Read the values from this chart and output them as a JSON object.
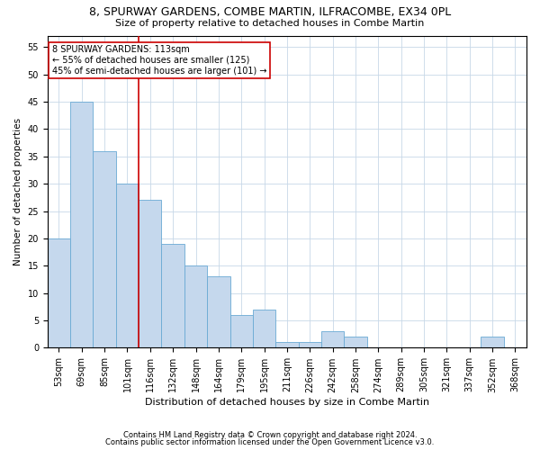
{
  "title1": "8, SPURWAY GARDENS, COMBE MARTIN, ILFRACOMBE, EX34 0PL",
  "title2": "Size of property relative to detached houses in Combe Martin",
  "xlabel": "Distribution of detached houses by size in Combe Martin",
  "ylabel": "Number of detached properties",
  "footnote1": "Contains HM Land Registry data © Crown copyright and database right 2024.",
  "footnote2": "Contains public sector information licensed under the Open Government Licence v3.0.",
  "bar_labels": [
    "53sqm",
    "69sqm",
    "85sqm",
    "101sqm",
    "116sqm",
    "132sqm",
    "148sqm",
    "164sqm",
    "179sqm",
    "195sqm",
    "211sqm",
    "226sqm",
    "242sqm",
    "258sqm",
    "274sqm",
    "289sqm",
    "305sqm",
    "321sqm",
    "337sqm",
    "352sqm",
    "368sqm"
  ],
  "bar_values": [
    20,
    45,
    36,
    30,
    27,
    19,
    15,
    13,
    6,
    7,
    1,
    1,
    3,
    2,
    0,
    0,
    0,
    0,
    0,
    2,
    0
  ],
  "bar_color": "#c5d8ed",
  "bar_edge_color": "#6aaad4",
  "vline_color": "#cc0000",
  "vline_pos": 3.5,
  "ylim": [
    0,
    57
  ],
  "yticks": [
    0,
    5,
    10,
    15,
    20,
    25,
    30,
    35,
    40,
    45,
    50,
    55
  ],
  "annotation_text": "8 SPURWAY GARDENS: 113sqm\n← 55% of detached houses are smaller (125)\n45% of semi-detached houses are larger (101) →",
  "annotation_box_color": "#ffffff",
  "annotation_box_edge": "#cc0000",
  "background_color": "#ffffff",
  "grid_color": "#c8d8e8",
  "title_fontsize": 9,
  "subtitle_fontsize": 8,
  "tick_fontsize": 7,
  "ylabel_fontsize": 7.5,
  "xlabel_fontsize": 8,
  "annot_fontsize": 7,
  "footnote_fontsize": 6
}
